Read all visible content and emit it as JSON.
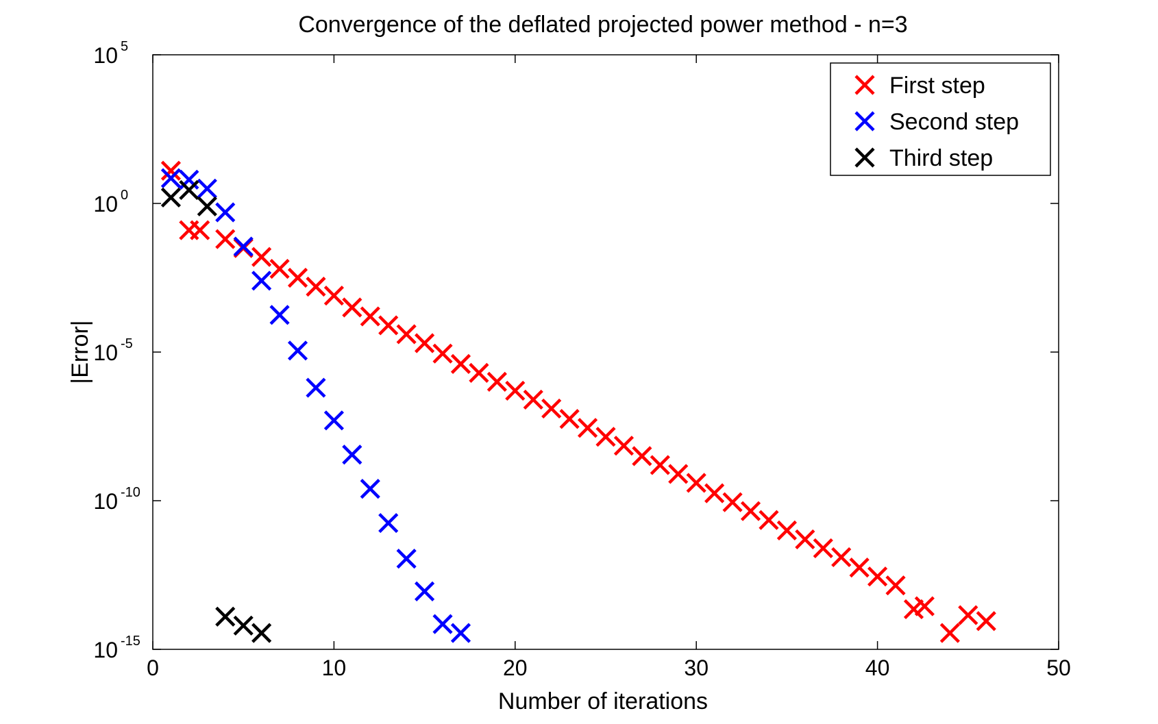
{
  "chart_data": {
    "type": "scatter",
    "title": "Convergence of the deflated projected power method - n=3",
    "xlabel": "Number of iterations",
    "ylabel": "|Error|",
    "xlim": [
      0,
      50
    ],
    "ylim_log10": [
      -15,
      5
    ],
    "yscale": "log",
    "grid": false,
    "marker": "x",
    "x_ticks": [
      "0",
      "10",
      "20",
      "30",
      "40",
      "50"
    ],
    "y_ticks": [
      {
        "base": "10",
        "exp": "5"
      },
      {
        "base": "10",
        "exp": "0"
      },
      {
        "base": "10",
        "exp": "-5"
      },
      {
        "base": "10",
        "exp": "-10"
      },
      {
        "base": "10",
        "exp": "-15"
      }
    ],
    "legend_position": "top-right",
    "series": [
      {
        "name": "First step",
        "color": "#ff0000",
        "x": [
          1,
          2,
          2.6,
          4,
          5,
          6,
          7,
          8,
          9,
          10,
          11,
          12,
          13,
          14,
          15,
          16,
          17,
          18,
          19,
          20,
          21,
          22,
          23,
          24,
          25,
          26,
          27,
          28,
          29,
          30,
          31,
          32,
          33,
          34,
          35,
          36,
          37,
          38,
          39,
          40,
          41,
          42,
          42.6,
          44,
          45,
          46
        ],
        "log10_y": [
          1.1,
          -0.9,
          -0.9,
          -1.2,
          -1.5,
          -1.8,
          -2.2,
          -2.5,
          -2.8,
          -3.1,
          -3.5,
          -3.8,
          -4.1,
          -4.4,
          -4.7,
          -5.05,
          -5.4,
          -5.7,
          -6.0,
          -6.3,
          -6.6,
          -6.9,
          -7.25,
          -7.55,
          -7.85,
          -8.15,
          -8.5,
          -8.8,
          -9.1,
          -9.4,
          -9.75,
          -10.05,
          -10.35,
          -10.65,
          -11.0,
          -11.3,
          -11.6,
          -11.9,
          -12.25,
          -12.55,
          -12.85,
          -13.65,
          -13.55,
          -14.45,
          -13.85,
          -14.05
        ]
      },
      {
        "name": "Second step",
        "color": "#0000ff",
        "x": [
          1,
          2,
          3,
          4,
          5,
          6,
          7,
          8,
          9,
          10,
          11,
          12,
          13,
          14,
          15,
          16,
          17
        ],
        "log10_y": [
          0.85,
          0.8,
          0.5,
          -0.3,
          -1.45,
          -2.6,
          -3.75,
          -4.95,
          -6.2,
          -7.3,
          -8.45,
          -9.6,
          -10.75,
          -11.95,
          -13.05,
          -14.15,
          -14.45
        ]
      },
      {
        "name": "Third step",
        "color": "#000000",
        "x": [
          1,
          2,
          3,
          4,
          5,
          6
        ],
        "log10_y": [
          0.2,
          0.45,
          -0.1,
          -13.9,
          -14.2,
          -14.45
        ]
      }
    ]
  }
}
